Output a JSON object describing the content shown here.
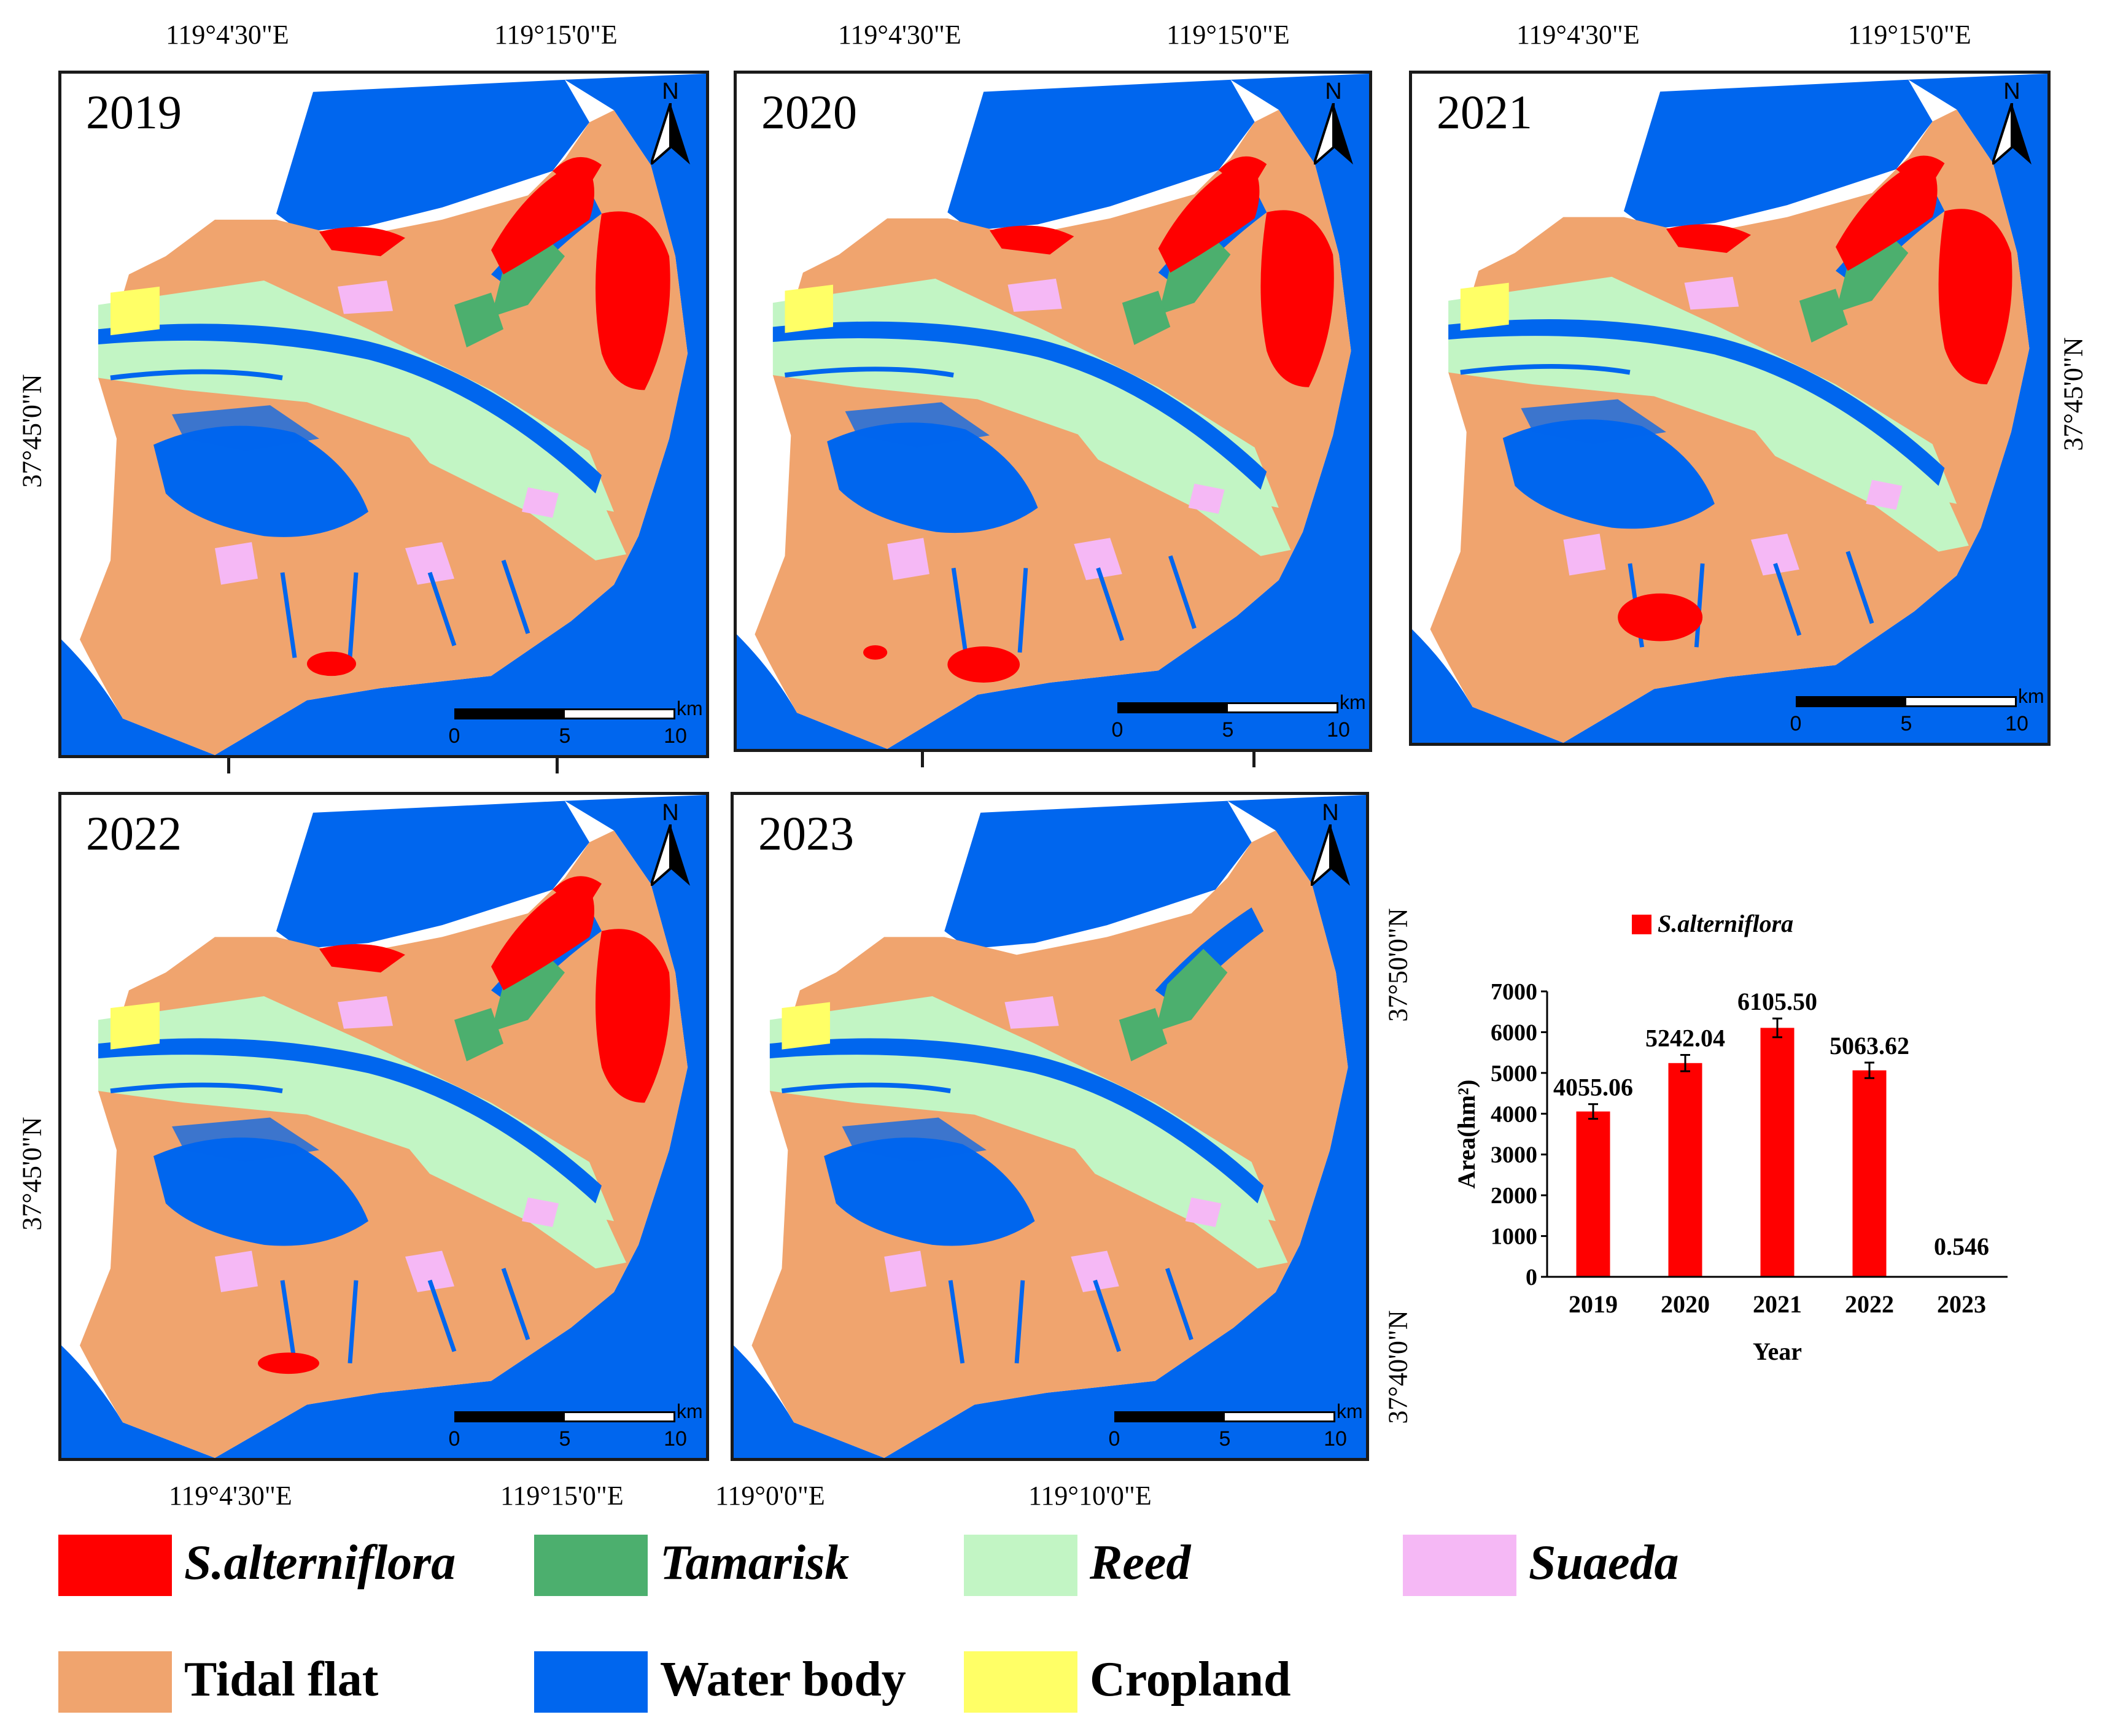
{
  "panels": [
    {
      "year": "2019",
      "scale_unit": "km",
      "scale_ticks": [
        "0",
        "5",
        "10"
      ],
      "north_label": "N"
    },
    {
      "year": "2020",
      "scale_unit": "km",
      "scale_ticks": [
        "0",
        "5",
        "10"
      ],
      "north_label": "N"
    },
    {
      "year": "2021",
      "scale_unit": "km",
      "scale_ticks": [
        "0",
        "5",
        "10"
      ],
      "north_label": "N"
    },
    {
      "year": "2022",
      "scale_unit": "km",
      "scale_ticks": [
        "0",
        "5",
        "10"
      ],
      "north_label": "N"
    },
    {
      "year": "2023",
      "scale_unit": "km",
      "scale_ticks": [
        "0",
        "5",
        "10"
      ],
      "north_label": "N"
    }
  ],
  "coords": {
    "top_row_lon": [
      "119°4'30\"E",
      "119°15'0\"E"
    ],
    "bottom_left_lon": [
      "119°4'30\"E",
      "119°15'0\"E"
    ],
    "bottom_mid_lon": [
      "119°0'0\"E",
      "119°10'0\"E"
    ],
    "lat_45": "37°45'0\"N",
    "lat_50": "37°50'0\"N",
    "lat_40": "37°40'0\"N"
  },
  "legend": [
    {
      "label": "S.alterniflora",
      "color": "#ff0000",
      "italic": true
    },
    {
      "label": "Tamarisk",
      "color": "#4caf6e",
      "italic": true
    },
    {
      "label": "Reed",
      "color": "#c2f5c4",
      "italic": true
    },
    {
      "label": "Suaeda",
      "color": "#f5b8f5",
      "italic": true
    },
    {
      "label": "Tidal flat",
      "color": "#f0a46e",
      "italic": false
    },
    {
      "label": "Water body",
      "color": "#0066ee",
      "italic": false
    },
    {
      "label": "Cropland",
      "color": "#ffff66",
      "italic": false
    }
  ],
  "chart_data": {
    "type": "bar",
    "legend": "S.alterniflora",
    "categories": [
      "2019",
      "2020",
      "2021",
      "2022",
      "2023"
    ],
    "values": [
      4055.06,
      5242.04,
      6105.5,
      5063.62,
      0.546
    ],
    "value_labels": [
      "4055.06",
      "5242.04",
      "6105.50",
      "5063.62",
      "0.546"
    ],
    "error": [
      180,
      200,
      230,
      190,
      0
    ],
    "xlabel": "Year",
    "ylabel": "Area(hm²)",
    "ylim": [
      0,
      7000
    ],
    "yticks": [
      "0",
      "1000",
      "2000",
      "3000",
      "4000",
      "5000",
      "6000",
      "7000"
    ],
    "bar_color": "#ff0000"
  }
}
